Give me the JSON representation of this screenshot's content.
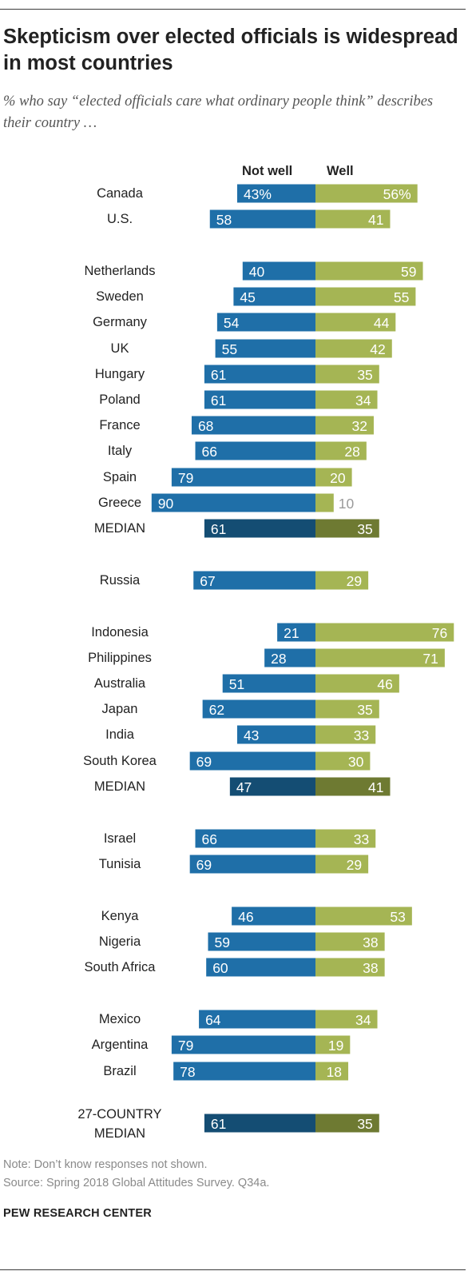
{
  "title": "Skepticism over elected officials is widespread in most countries",
  "subtitle": "% who say “elected officials care what ordinary people think” describes their country …",
  "legend": {
    "not_well": "Not well",
    "well": "Well"
  },
  "colors": {
    "not_well": "#1f6fa8",
    "well": "#a5b554",
    "median_not_well": "#144d73",
    "median_well": "#6e7a32",
    "label_dark": "#222222",
    "value_light": "#ffffff",
    "value_gray": "#9a9a9a"
  },
  "notes": {
    "note": "Note: Don’t know responses not shown.",
    "source": "Source: Spring 2018 Global Attitudes Survey. Q34a."
  },
  "brand": "PEW RESEARCH CENTER",
  "chart_data": {
    "type": "bar",
    "orientation": "horizontal-diverging",
    "series": [
      {
        "name": "Not well",
        "values": [
          43,
          58,
          40,
          45,
          54,
          55,
          61,
          61,
          68,
          66,
          79,
          90,
          61,
          67,
          21,
          28,
          51,
          62,
          43,
          69,
          47,
          66,
          69,
          46,
          59,
          60,
          64,
          79,
          78,
          61
        ]
      },
      {
        "name": "Well",
        "values": [
          56,
          41,
          59,
          55,
          44,
          42,
          35,
          34,
          32,
          28,
          20,
          10,
          35,
          29,
          76,
          71,
          46,
          35,
          33,
          30,
          41,
          33,
          29,
          53,
          38,
          38,
          34,
          19,
          18,
          35
        ]
      }
    ],
    "rows": [
      {
        "label": "Canada",
        "not_well": 43,
        "well": 56,
        "nw_text": "43%",
        "w_text": "56%"
      },
      {
        "label": "U.S.",
        "not_well": 58,
        "well": 41,
        "nw_text": "58",
        "w_text": "41"
      },
      {
        "label": "Netherlands",
        "not_well": 40,
        "well": 59,
        "nw_text": "40",
        "w_text": "59"
      },
      {
        "label": "Sweden",
        "not_well": 45,
        "well": 55,
        "nw_text": "45",
        "w_text": "55"
      },
      {
        "label": "Germany",
        "not_well": 54,
        "well": 44,
        "nw_text": "54",
        "w_text": "44"
      },
      {
        "label": "UK",
        "not_well": 55,
        "well": 42,
        "nw_text": "55",
        "w_text": "42"
      },
      {
        "label": "Hungary",
        "not_well": 61,
        "well": 35,
        "nw_text": "61",
        "w_text": "35"
      },
      {
        "label": "Poland",
        "not_well": 61,
        "well": 34,
        "nw_text": "61",
        "w_text": "34"
      },
      {
        "label": "France",
        "not_well": 68,
        "well": 32,
        "nw_text": "68",
        "w_text": "32"
      },
      {
        "label": "Italy",
        "not_well": 66,
        "well": 28,
        "nw_text": "66",
        "w_text": "28"
      },
      {
        "label": "Spain",
        "not_well": 79,
        "well": 20,
        "nw_text": "79",
        "w_text": "20"
      },
      {
        "label": "Greece",
        "not_well": 90,
        "well": 10,
        "nw_text": "90",
        "w_text": "10"
      },
      {
        "label": "MEDIAN",
        "not_well": 61,
        "well": 35,
        "nw_text": "61",
        "w_text": "35",
        "median": true
      },
      {
        "label": "Russia",
        "not_well": 67,
        "well": 29,
        "nw_text": "67",
        "w_text": "29"
      },
      {
        "label": "Indonesia",
        "not_well": 21,
        "well": 76,
        "nw_text": "21",
        "w_text": "76"
      },
      {
        "label": "Philippines",
        "not_well": 28,
        "well": 71,
        "nw_text": "28",
        "w_text": "71"
      },
      {
        "label": "Australia",
        "not_well": 51,
        "well": 46,
        "nw_text": "51",
        "w_text": "46"
      },
      {
        "label": "Japan",
        "not_well": 62,
        "well": 35,
        "nw_text": "62",
        "w_text": "35"
      },
      {
        "label": "India",
        "not_well": 43,
        "well": 33,
        "nw_text": "43",
        "w_text": "33"
      },
      {
        "label": "South Korea",
        "not_well": 69,
        "well": 30,
        "nw_text": "69",
        "w_text": "30"
      },
      {
        "label": "MEDIAN",
        "not_well": 47,
        "well": 41,
        "nw_text": "47",
        "w_text": "41",
        "median": true
      },
      {
        "label": "Israel",
        "not_well": 66,
        "well": 33,
        "nw_text": "66",
        "w_text": "33"
      },
      {
        "label": "Tunisia",
        "not_well": 69,
        "well": 29,
        "nw_text": "69",
        "w_text": "29"
      },
      {
        "label": "Kenya",
        "not_well": 46,
        "well": 53,
        "nw_text": "46",
        "w_text": "53"
      },
      {
        "label": "Nigeria",
        "not_well": 59,
        "well": 38,
        "nw_text": "59",
        "w_text": "38"
      },
      {
        "label": "South Africa",
        "not_well": 60,
        "well": 38,
        "nw_text": "60",
        "w_text": "38"
      },
      {
        "label": "Mexico",
        "not_well": 64,
        "well": 34,
        "nw_text": "64",
        "w_text": "34"
      },
      {
        "label": "Argentina",
        "not_well": 79,
        "well": 19,
        "nw_text": "79",
        "w_text": "19"
      },
      {
        "label": "Brazil",
        "not_well": 78,
        "well": 18,
        "nw_text": "78",
        "w_text": "18"
      },
      {
        "label": "27-COUNTRY MEDIAN",
        "label_lines": [
          "27-COUNTRY",
          "MEDIAN"
        ],
        "not_well": 61,
        "well": 35,
        "nw_text": "61",
        "w_text": "35",
        "median": true
      }
    ],
    "xlim": [
      0,
      100
    ],
    "grid": false,
    "legend_position": "top"
  }
}
